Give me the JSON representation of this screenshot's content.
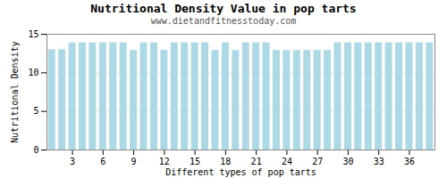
{
  "chart_data": {
    "type": "bar",
    "title": "Nutritional Density Value in pop tarts",
    "subtitle": "www.dietandfitnesstoday.com",
    "xlabel": "Different types of pop tarts",
    "ylabel": "Nutritional Density",
    "x": [
      1,
      2,
      3,
      4,
      5,
      6,
      7,
      8,
      9,
      10,
      11,
      12,
      13,
      14,
      15,
      16,
      17,
      18,
      19,
      20,
      21,
      22,
      23,
      24,
      25,
      26,
      27,
      28,
      29,
      30,
      31,
      32,
      33,
      34,
      35,
      36,
      37,
      38
    ],
    "values": [
      13.0,
      13.0,
      13.89,
      13.89,
      13.89,
      13.89,
      13.89,
      13.89,
      12.9,
      13.89,
      13.89,
      12.9,
      13.89,
      13.89,
      13.89,
      13.89,
      12.9,
      13.89,
      12.9,
      13.89,
      13.89,
      13.89,
      12.9,
      12.9,
      12.9,
      12.9,
      12.9,
      12.9,
      13.89,
      13.89,
      13.89,
      13.89,
      13.89,
      13.89,
      13.89,
      13.89,
      13.89,
      13.89
    ],
    "color": "#add8e6",
    "xlim": [
      0.5,
      38.5
    ],
    "xticks": [
      3,
      6,
      9,
      12,
      15,
      18,
      21,
      24,
      27,
      30,
      33,
      36
    ],
    "ylim": [
      0,
      15
    ],
    "yticks": [
      0,
      5,
      10,
      15
    ],
    "grid": true
  }
}
